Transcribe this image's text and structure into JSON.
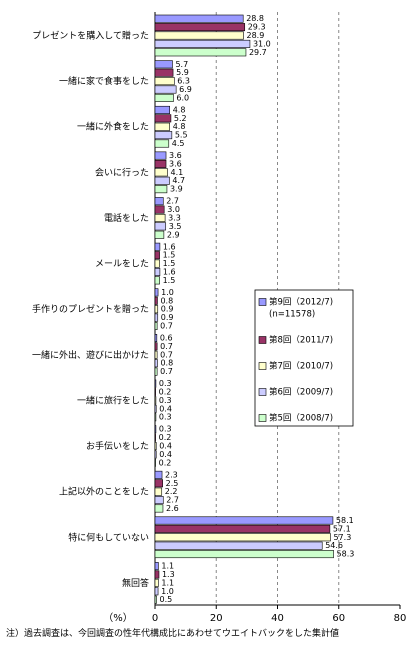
{
  "chart_data": {
    "type": "hbar",
    "categories": [
      "プレゼントを購入して贈った",
      "一緒に家で食事をした",
      "一緒に外食をした",
      "会いに行った",
      "電話をした",
      "メールをした",
      "手作りのプレゼントを贈った",
      "一緒に外出、遊びに出かけた",
      "一緒に旅行をした",
      "お手伝いをした",
      "上記以外のことをした",
      "特に何もしていない",
      "無回答"
    ],
    "series": [
      {
        "name": "第9回（2012/7)",
        "legend_note": "(n=11578)",
        "color": "#9999ff",
        "values": [
          28.8,
          5.7,
          4.8,
          3.6,
          2.7,
          1.6,
          1.0,
          0.6,
          0.3,
          0.3,
          2.3,
          58.1,
          1.1
        ],
        "value_labels": [
          "28.8",
          "5.7",
          "4.8",
          "3.6",
          "2.7",
          "1.6",
          "1.0",
          "0.6",
          "0.3",
          "0.3",
          "2.3",
          "58.1",
          "1.1"
        ]
      },
      {
        "name": "第8回（2011/7)",
        "color": "#993366",
        "values": [
          29.3,
          5.9,
          5.2,
          3.6,
          3.0,
          1.5,
          0.8,
          0.7,
          0.2,
          0.2,
          2.5,
          57.1,
          1.3
        ],
        "value_labels": [
          "29.3",
          "5.9",
          "5.2",
          "3.6",
          "3.0",
          "1.5",
          "0.8",
          "0.7",
          "0.2",
          "0.2",
          "2.5",
          "57.1",
          "1.3"
        ]
      },
      {
        "name": "第7回（2010/7)",
        "color": "#ffffcc",
        "values": [
          28.9,
          6.3,
          4.8,
          4.1,
          3.3,
          1.5,
          0.9,
          0.7,
          0.3,
          0.4,
          2.2,
          57.3,
          1.1
        ],
        "value_labels": [
          "28.9",
          "6.3",
          "4.8",
          "4.1",
          "3.3",
          "1.5",
          "0.9",
          "0.7",
          "0.3",
          "0.4",
          "2.2",
          "57.3",
          "1.1"
        ]
      },
      {
        "name": "第6回（2009/7)",
        "color": "#ccccff",
        "values": [
          31.0,
          6.9,
          5.5,
          4.7,
          3.5,
          1.6,
          0.9,
          0.8,
          0.4,
          0.4,
          2.7,
          54.6,
          1.0
        ],
        "value_labels": [
          "31.0",
          "6.9",
          "5.5",
          "4.7",
          "3.5",
          "1.6",
          "0.9",
          "0.8",
          "0.4",
          "0.4",
          "2.7",
          "54.6",
          "1.0"
        ]
      },
      {
        "name": "第5回（2008/7)",
        "color": "#ccffcc",
        "values": [
          29.7,
          6.0,
          4.5,
          3.9,
          2.9,
          1.5,
          0.7,
          0.7,
          0.3,
          0.2,
          2.6,
          58.3,
          0.5
        ],
        "value_labels": [
          "29.7",
          "6.0",
          "4.5",
          "3.9",
          "2.9",
          "1.5",
          "0.7",
          "0.7",
          "0.3",
          "0.2",
          "2.6",
          "58.3",
          "0.5"
        ]
      }
    ],
    "xlim": [
      0,
      80
    ],
    "xticks": [
      0,
      20,
      40,
      60,
      80
    ],
    "xlabel": "（%）",
    "grid": true,
    "legend_position": "center-right",
    "note": "注）過去調査は、今回調査の性年代構成比にあわせてウエイトバックをした集計値"
  }
}
